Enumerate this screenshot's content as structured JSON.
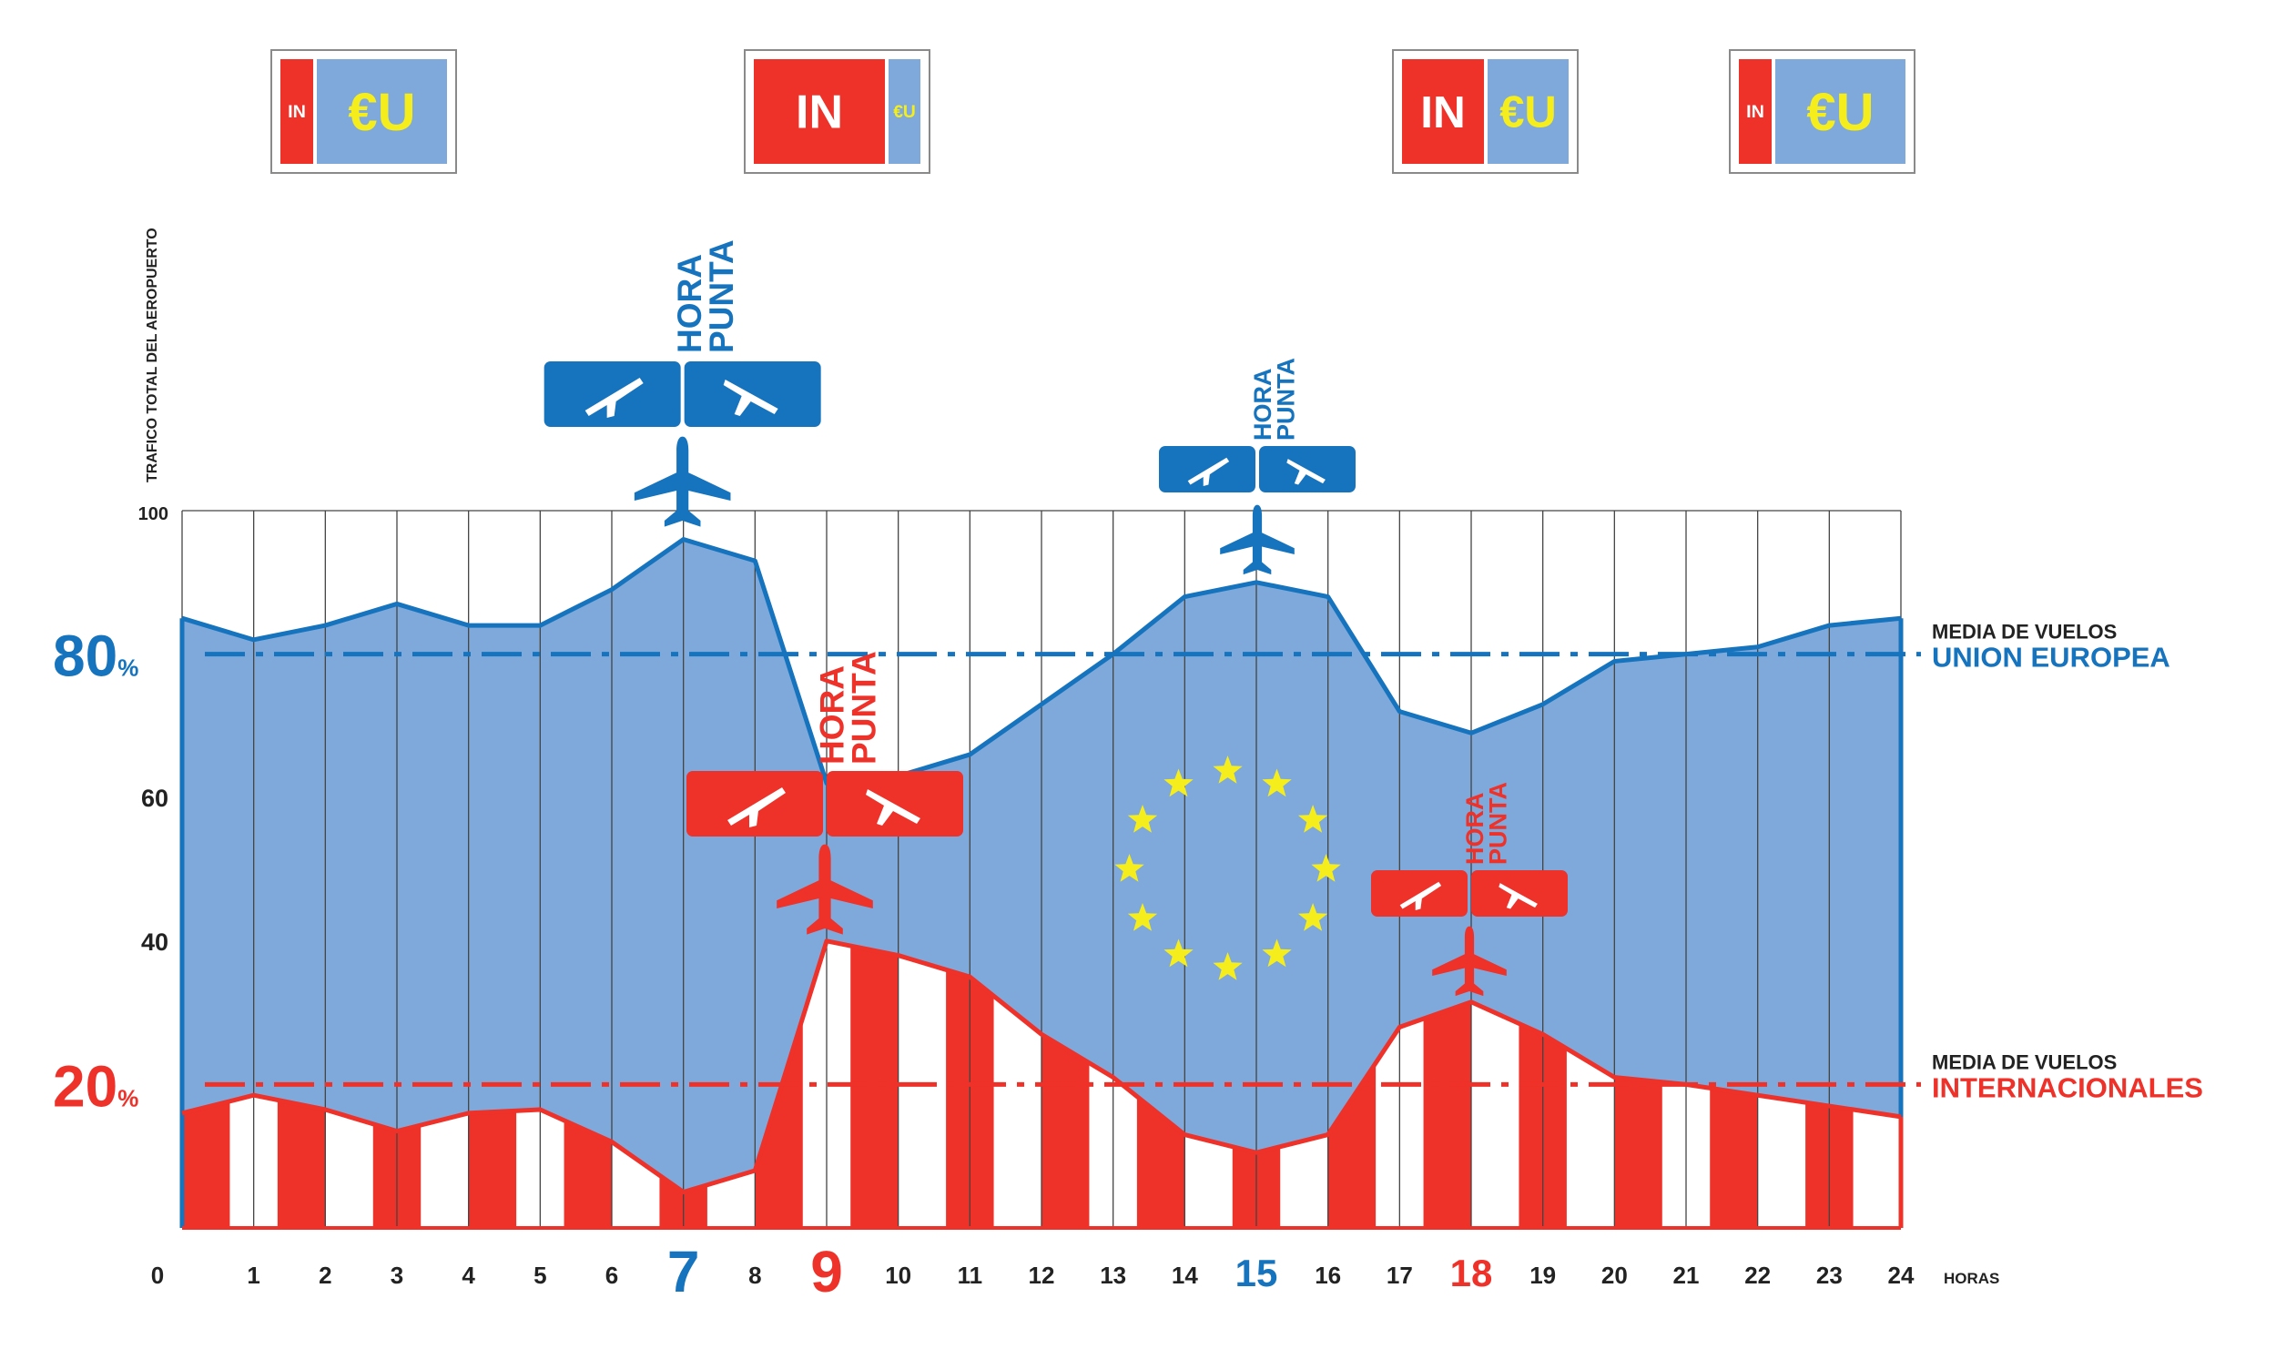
{
  "colors": {
    "eu_blue": "#1673bd",
    "eu_fill": "#7fa9da",
    "intl_red": "#ee3129",
    "star_yellow": "#f5ee1c",
    "grid": "#444444"
  },
  "badges": [
    {
      "in_label": "IN",
      "eu_label": "€U",
      "in_share": 0.2
    },
    {
      "in_label": "IN",
      "eu_label": "€U",
      "in_share": 0.8
    },
    {
      "in_label": "IN",
      "eu_label": "€U",
      "in_share": 0.5
    },
    {
      "in_label": "IN",
      "eu_label": "€U",
      "in_share": 0.2
    }
  ],
  "peaks": [
    {
      "hour": 7,
      "label_line1": "HORA",
      "label_line2": "PUNTA",
      "color": "eu",
      "size": "large",
      "arrival_icon": "plane-arrival-icon",
      "departure_icon": "plane-departure-icon",
      "plane_icon": "airplane-icon"
    },
    {
      "hour": 9,
      "label_line1": "HORA",
      "label_line2": "PUNTA",
      "color": "intl",
      "size": "large",
      "arrival_icon": "plane-arrival-icon",
      "departure_icon": "plane-departure-icon",
      "plane_icon": "airplane-icon"
    },
    {
      "hour": 15,
      "label_line1": "HORA",
      "label_line2": "PUNTA",
      "color": "eu",
      "size": "small",
      "arrival_icon": "plane-arrival-icon",
      "departure_icon": "plane-departure-icon",
      "plane_icon": "airplane-icon"
    },
    {
      "hour": 18,
      "label_line1": "HORA",
      "label_line2": "PUNTA",
      "color": "intl",
      "size": "small",
      "arrival_icon": "plane-arrival-icon",
      "departure_icon": "plane-departure-icon",
      "plane_icon": "airplane-icon"
    }
  ],
  "chart_data": {
    "type": "area",
    "title": "",
    "ylabel": "TRAFICO TOTAL DEL AEROPUERTO",
    "xlabel": "HORAS",
    "ylim": [
      0,
      100
    ],
    "xlim": [
      0,
      24
    ],
    "y_ticks": [
      {
        "value": 100,
        "label": "100"
      },
      {
        "value": 80,
        "label": "80",
        "unit": "%",
        "emphasis": "eu"
      },
      {
        "value": 60,
        "label": "60"
      },
      {
        "value": 40,
        "label": "40"
      },
      {
        "value": 20,
        "label": "20",
        "unit": "%",
        "emphasis": "intl"
      }
    ],
    "x": [
      0,
      1,
      2,
      3,
      4,
      5,
      6,
      7,
      8,
      9,
      10,
      11,
      12,
      13,
      14,
      15,
      16,
      17,
      18,
      19,
      20,
      21,
      22,
      23,
      24
    ],
    "x_highlight": {
      "7": "eu",
      "9": "intl",
      "15": "eu",
      "18": "intl"
    },
    "grid": true,
    "series": [
      {
        "id": "total",
        "values": [
          85,
          82,
          84,
          87,
          84,
          84,
          89,
          96,
          93,
          62,
          63,
          66,
          73,
          80,
          88,
          90,
          88,
          72,
          69,
          73,
          79,
          80,
          81,
          84,
          85
        ]
      },
      {
        "id": "intl",
        "values": [
          16,
          18.5,
          16.5,
          13.5,
          16,
          16.5,
          12,
          5,
          8,
          40,
          38,
          35,
          27,
          21,
          13,
          10.5,
          13,
          28,
          31.5,
          27,
          21,
          20,
          18.5,
          17,
          15.5
        ]
      }
    ],
    "reference_lines": [
      {
        "value": 80,
        "label_line1": "MEDIA DE VUELOS",
        "label_line2": "UNION EUROPEA",
        "color": "eu"
      },
      {
        "value": 20,
        "label_line1": "MEDIA DE VUELOS",
        "label_line2": "INTERNACIONALES",
        "color": "intl"
      }
    ],
    "decoration": {
      "star_count": 12,
      "center_hour": 14.6,
      "center_value": 50
    }
  }
}
